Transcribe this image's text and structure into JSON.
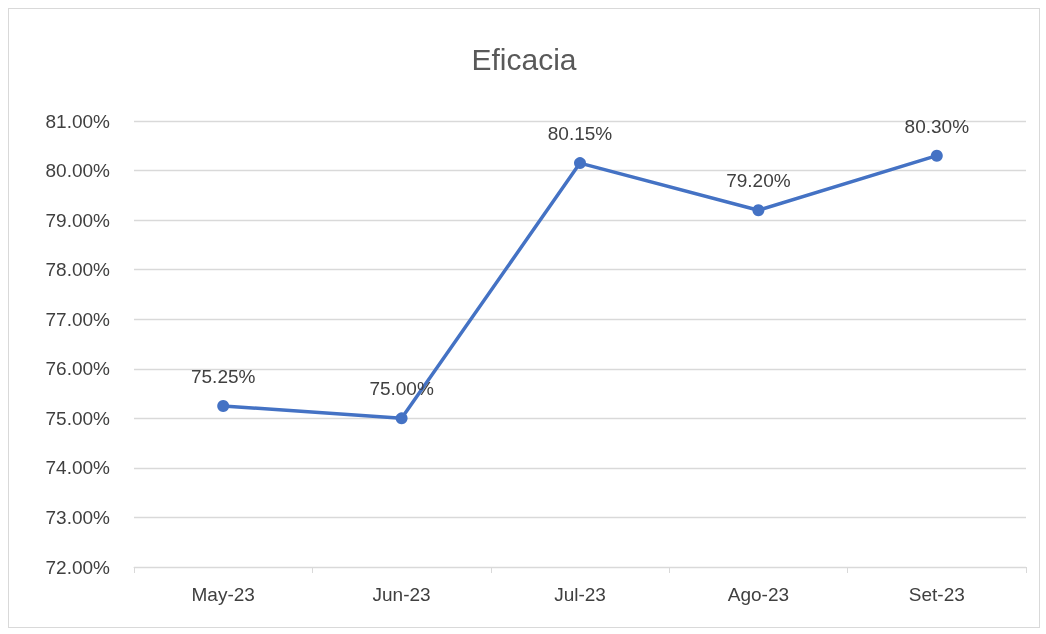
{
  "chart_data": {
    "type": "line",
    "title": "Eficacia",
    "categories": [
      "May-23",
      "Jun-23",
      "Jul-23",
      "Ago-23",
      "Set-23"
    ],
    "series": [
      {
        "color": "#4472c4",
        "values": [
          75.25,
          75.0,
          80.15,
          79.2,
          80.3
        ],
        "value_labels": [
          "75.25%",
          "75.00%",
          "80.15%",
          "79.20%",
          "80.30%"
        ]
      }
    ],
    "ylim": [
      72,
      81
    ],
    "yticks": [
      {
        "value": 72,
        "label": "72.00%"
      },
      {
        "value": 73,
        "label": "73.00%"
      },
      {
        "value": 74,
        "label": "74.00%"
      },
      {
        "value": 75,
        "label": "75.00%"
      },
      {
        "value": 76,
        "label": "76.00%"
      },
      {
        "value": 77,
        "label": "77.00%"
      },
      {
        "value": 78,
        "label": "78.00%"
      },
      {
        "value": 79,
        "label": "79.00%"
      },
      {
        "value": 80,
        "label": "80.00%"
      },
      {
        "value": 81,
        "label": "81.00%"
      }
    ],
    "grid": "y",
    "marker": "circle",
    "line_style": "solid"
  }
}
